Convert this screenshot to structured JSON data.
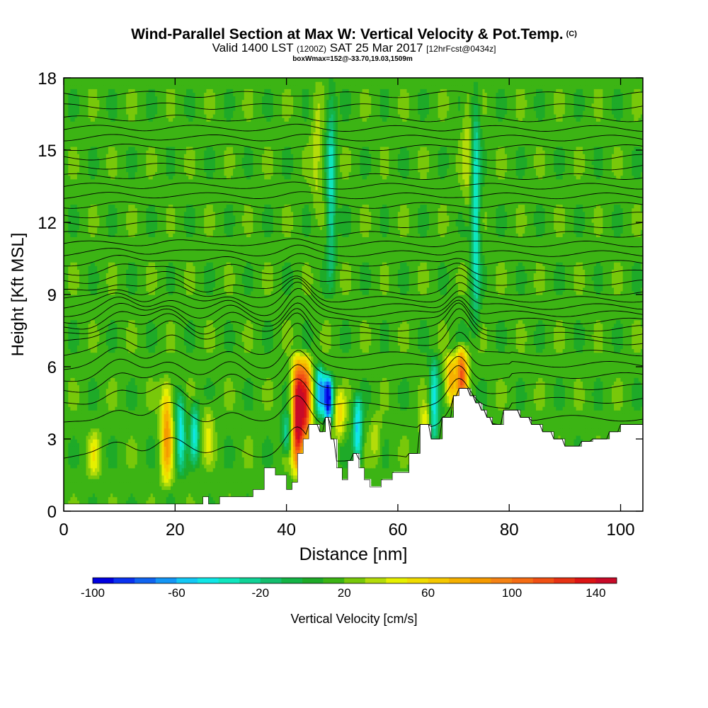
{
  "header": {
    "title": "Wind-Parallel Section at Max W: Vertical Velocity & Pot.Temp.",
    "copyright": "(C)",
    "valid_prefix": "Valid 1400 LST",
    "valid_utc": "(1200Z)",
    "valid_date": "SAT 25 Mar 2017",
    "forecast_info": "[12hrFcst@0434z]",
    "box_info": "boxWmax=152@-33.70,19.03,1509m"
  },
  "colorbar": {
    "label": "Vertical Velocity [cm/s]",
    "tick_labels": [
      "-100",
      "-60",
      "-20",
      "20",
      "60",
      "100",
      "140"
    ],
    "colors": [
      "#0000e0",
      "#0a32f0",
      "#1064f0",
      "#1496f5",
      "#14c8f5",
      "#10e6e6",
      "#0fe6be",
      "#10d296",
      "#14be6e",
      "#14b446",
      "#1eaa28",
      "#3cb414",
      "#78c80a",
      "#b4dc0a",
      "#e6f000",
      "#f0dc00",
      "#f5c800",
      "#f5b000",
      "#f59a00",
      "#f58214",
      "#f56c14",
      "#f05014",
      "#e63214",
      "#dc1414",
      "#c80a28"
    ],
    "range": [
      -100,
      150
    ]
  },
  "chart_data": {
    "type": "heatmap",
    "title": "Wind-Parallel Section at Max W: Vertical Velocity & Pot.Temp.",
    "xlabel": "Distance [nm]",
    "ylabel": "Height [Kft MSL]",
    "xlim": [
      0,
      104
    ],
    "ylim": [
      0,
      18
    ],
    "x_ticks": [
      "0",
      "20",
      "40",
      "60",
      "80",
      "100"
    ],
    "y_ticks": [
      "0",
      "3",
      "6",
      "9",
      "12",
      "15",
      "18"
    ],
    "background_w": 15,
    "updrafts": [
      {
        "x": 42,
        "y_low": 1.5,
        "y_high": 6.5,
        "peak": 150
      },
      {
        "x": 43.5,
        "y_low": 2.5,
        "y_high": 6.5,
        "peak": 115
      },
      {
        "x": 18.5,
        "y_low": 1.0,
        "y_high": 5.5,
        "peak": 85
      },
      {
        "x": 71.5,
        "y_low": 4.5,
        "y_high": 6.8,
        "peak": 110
      },
      {
        "x": 69.5,
        "y_low": 4.5,
        "y_high": 6.5,
        "peak": 75
      },
      {
        "x": 49.5,
        "y_low": 3.0,
        "y_high": 5.0,
        "peak": 55
      },
      {
        "x": 5.5,
        "y_low": 1.5,
        "y_high": 3.2,
        "peak": 45
      },
      {
        "x": 65,
        "y_low": 2.5,
        "y_high": 4.5,
        "peak": 45
      },
      {
        "x": 26,
        "y_low": 2.0,
        "y_high": 4.5,
        "peak": 40
      },
      {
        "x": 56,
        "y_low": 2.0,
        "y_high": 4.0,
        "peak": 35
      },
      {
        "x": 45.5,
        "y_low": 12,
        "y_high": 18,
        "peak": 35
      },
      {
        "x": 72.5,
        "y_low": 12,
        "y_high": 18,
        "peak": 35
      }
    ],
    "downdrafts": [
      {
        "x": 47.5,
        "y_low": 3.8,
        "y_high": 5.6,
        "peak": -100
      },
      {
        "x": 46,
        "y_low": 4.0,
        "y_high": 6.0,
        "peak": -60
      },
      {
        "x": 52.8,
        "y_low": 2.0,
        "y_high": 4.8,
        "peak": -55
      },
      {
        "x": 21,
        "y_low": 1.5,
        "y_high": 5.0,
        "peak": -45
      },
      {
        "x": 23.5,
        "y_low": 2.0,
        "y_high": 4.5,
        "peak": -40
      },
      {
        "x": 66.5,
        "y_low": 2.5,
        "y_high": 6.5,
        "peak": -45
      },
      {
        "x": 74,
        "y_low": 7.0,
        "y_high": 18,
        "peak": -40
      },
      {
        "x": 48,
        "y_low": 9,
        "y_high": 18,
        "peak": -35
      },
      {
        "x": 40,
        "y_low": 2.5,
        "y_high": 4.0,
        "peak": -30
      }
    ],
    "terrain": [
      [
        0,
        0.3
      ],
      [
        25,
        0.3
      ],
      [
        25,
        0.6
      ],
      [
        26,
        0.6
      ],
      [
        26,
        0.3
      ],
      [
        28,
        0.3
      ],
      [
        28,
        0.6
      ],
      [
        34,
        0.6
      ],
      [
        34,
        0.9
      ],
      [
        36,
        0.9
      ],
      [
        36,
        1.8
      ],
      [
        38,
        1.8
      ],
      [
        38,
        1.5
      ],
      [
        40,
        1.5
      ],
      [
        40,
        0.9
      ],
      [
        41,
        0.9
      ],
      [
        41,
        1.2
      ],
      [
        42,
        1.2
      ],
      [
        42,
        2.4
      ],
      [
        43,
        2.4
      ],
      [
        43,
        3.0
      ],
      [
        44,
        3.0
      ],
      [
        44,
        3.6
      ],
      [
        46,
        3.6
      ],
      [
        46,
        3.3
      ],
      [
        47,
        3.3
      ],
      [
        47,
        3.9
      ],
      [
        48,
        3.9
      ],
      [
        48,
        3.0
      ],
      [
        49,
        3.0
      ],
      [
        49,
        1.8
      ],
      [
        50,
        1.8
      ],
      [
        50,
        1.3
      ],
      [
        51,
        1.3
      ],
      [
        51,
        2.1
      ],
      [
        52,
        2.1
      ],
      [
        52,
        2.4
      ],
      [
        53,
        2.4
      ],
      [
        53,
        1.8
      ],
      [
        54,
        1.8
      ],
      [
        54,
        1.3
      ],
      [
        55,
        1.3
      ],
      [
        55,
        1.0
      ],
      [
        57,
        1.0
      ],
      [
        57,
        1.3
      ],
      [
        59,
        1.3
      ],
      [
        59,
        1.6
      ],
      [
        62,
        1.6
      ],
      [
        62,
        2.4
      ],
      [
        64,
        2.4
      ],
      [
        64,
        3.6
      ],
      [
        66,
        3.6
      ],
      [
        66,
        3.0
      ],
      [
        68,
        3.0
      ],
      [
        68,
        3.9
      ],
      [
        70,
        3.9
      ],
      [
        70,
        4.8
      ],
      [
        71,
        4.8
      ],
      [
        71,
        5.1
      ],
      [
        73,
        5.1
      ],
      [
        73,
        4.8
      ],
      [
        74,
        4.8
      ],
      [
        74,
        4.5
      ],
      [
        75,
        4.5
      ],
      [
        75,
        4.2
      ],
      [
        76,
        4.2
      ],
      [
        76,
        3.9
      ],
      [
        77,
        3.9
      ],
      [
        77,
        3.6
      ],
      [
        79,
        3.6
      ],
      [
        79,
        4.2
      ],
      [
        82,
        4.2
      ],
      [
        82,
        3.9
      ],
      [
        84,
        3.9
      ],
      [
        84,
        3.6
      ],
      [
        86,
        3.6
      ],
      [
        86,
        3.3
      ],
      [
        88,
        3.3
      ],
      [
        88,
        3.0
      ],
      [
        90,
        3.0
      ],
      [
        90,
        2.7
      ],
      [
        93,
        2.7
      ],
      [
        93,
        2.9
      ],
      [
        95,
        2.9
      ],
      [
        95,
        3.0
      ],
      [
        98,
        3.0
      ],
      [
        98,
        3.3
      ],
      [
        100,
        3.3
      ],
      [
        100,
        3.6
      ],
      [
        104,
        3.6
      ]
    ],
    "theta_levels_kft": [
      2.2,
      3.6,
      4.4,
      5.0,
      5.5,
      6.0,
      6.5,
      7.0,
      7.3,
      7.6,
      7.9,
      8.2,
      8.5,
      8.8,
      9.1,
      9.5,
      9.9,
      10.3,
      10.7,
      11.1,
      11.5,
      11.9,
      12.3,
      12.7,
      13.1,
      13.5,
      13.9,
      14.3,
      14.7,
      15.1,
      15.5,
      15.9,
      16.3,
      16.8,
      17.3
    ]
  }
}
